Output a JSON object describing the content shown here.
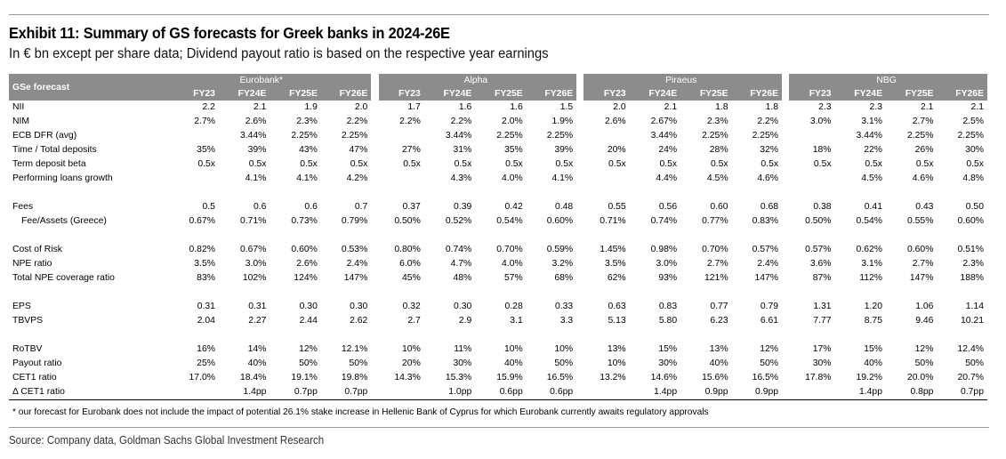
{
  "title": "Exhibit 11: Summary of GS forecasts for Greek banks in 2024-26E",
  "subtitle": "In € bn except per share data; Dividend payout ratio is based on the respective year earnings",
  "table": {
    "row_header": "GSe forecast",
    "banks": [
      "Eurobank*",
      "Alpha",
      "Piraeus",
      "NBG"
    ],
    "years": [
      "FY23",
      "FY24E",
      "FY25E",
      "FY26E"
    ],
    "rows": [
      {
        "label": "NII",
        "values": [
          "2.2",
          "2.1",
          "1.9",
          "2.0",
          "1.7",
          "1.6",
          "1.6",
          "1.5",
          "2.0",
          "2.1",
          "1.8",
          "1.8",
          "2.3",
          "2.3",
          "2.1",
          "2.1"
        ]
      },
      {
        "label": "NIM",
        "values": [
          "2.7%",
          "2.6%",
          "2.3%",
          "2.2%",
          "2.2%",
          "2.2%",
          "2.0%",
          "1.9%",
          "2.6%",
          "2.67%",
          "2.3%",
          "2.2%",
          "3.0%",
          "3.1%",
          "2.7%",
          "2.5%"
        ]
      },
      {
        "label": "ECB DFR (avg)",
        "values": [
          "",
          "3.44%",
          "2.25%",
          "2.25%",
          "",
          "3.44%",
          "2.25%",
          "2.25%",
          "",
          "3.44%",
          "2.25%",
          "2.25%",
          "",
          "3.44%",
          "2.25%",
          "2.25%"
        ]
      },
      {
        "label": "Time / Total deposits",
        "values": [
          "35%",
          "39%",
          "43%",
          "47%",
          "27%",
          "31%",
          "35%",
          "39%",
          "20%",
          "24%",
          "28%",
          "32%",
          "18%",
          "22%",
          "26%",
          "30%"
        ]
      },
      {
        "label": "Term deposit beta",
        "values": [
          "0.5x",
          "0.5x",
          "0.5x",
          "0.5x",
          "0.5x",
          "0.5x",
          "0.5x",
          "0.5x",
          "0.5x",
          "0.5x",
          "0.5x",
          "0.5x",
          "0.5x",
          "0.5x",
          "0.5x",
          "0.5x"
        ]
      },
      {
        "label": "Performing loans growth",
        "values": [
          "",
          "4.1%",
          "4.1%",
          "4.2%",
          "",
          "4.3%",
          "4.0%",
          "4.1%",
          "",
          "4.4%",
          "4.5%",
          "4.6%",
          "",
          "4.5%",
          "4.6%",
          "4.8%"
        ]
      },
      {
        "spacer": true
      },
      {
        "label": "Fees",
        "values": [
          "0.5",
          "0.6",
          "0.6",
          "0.7",
          "0.37",
          "0.39",
          "0.42",
          "0.48",
          "0.55",
          "0.56",
          "0.60",
          "0.68",
          "0.38",
          "0.41",
          "0.43",
          "0.50"
        ]
      },
      {
        "label": "Fee/Assets (Greece)",
        "indent": true,
        "values": [
          "0.67%",
          "0.71%",
          "0.73%",
          "0.79%",
          "0.50%",
          "0.52%",
          "0.54%",
          "0.60%",
          "0.71%",
          "0.74%",
          "0.77%",
          "0.83%",
          "0.50%",
          "0.54%",
          "0.55%",
          "0.60%"
        ]
      },
      {
        "spacer": true
      },
      {
        "label": "Cost of Risk",
        "values": [
          "0.82%",
          "0.67%",
          "0.60%",
          "0.53%",
          "0.80%",
          "0.74%",
          "0.70%",
          "0.59%",
          "1.45%",
          "0.98%",
          "0.70%",
          "0.57%",
          "0.57%",
          "0.62%",
          "0.60%",
          "0.51%"
        ]
      },
      {
        "label": "NPE ratio",
        "values": [
          "3.5%",
          "3.0%",
          "2.6%",
          "2.4%",
          "6.0%",
          "4.7%",
          "4.0%",
          "3.2%",
          "3.5%",
          "3.0%",
          "2.7%",
          "2.4%",
          "3.6%",
          "3.1%",
          "2.7%",
          "2.3%"
        ]
      },
      {
        "label": "Total NPE coverage ratio",
        "values": [
          "83%",
          "102%",
          "124%",
          "147%",
          "45%",
          "48%",
          "57%",
          "68%",
          "62%",
          "93%",
          "121%",
          "147%",
          "87%",
          "112%",
          "147%",
          "188%"
        ]
      },
      {
        "spacer": true
      },
      {
        "label": "EPS",
        "values": [
          "0.31",
          "0.31",
          "0.30",
          "0.30",
          "0.32",
          "0.30",
          "0.28",
          "0.33",
          "0.63",
          "0.83",
          "0.77",
          "0.79",
          "1.31",
          "1.20",
          "1.06",
          "1.14"
        ]
      },
      {
        "label": "TBVPS",
        "values": [
          "2.04",
          "2.27",
          "2.44",
          "2.62",
          "2.7",
          "2.9",
          "3.1",
          "3.3",
          "5.13",
          "5.80",
          "6.23",
          "6.61",
          "7.77",
          "8.75",
          "9.46",
          "10.21"
        ]
      },
      {
        "spacer": true
      },
      {
        "label": "RoTBV",
        "values": [
          "16%",
          "14%",
          "12%",
          "12.1%",
          "10%",
          "11%",
          "10%",
          "10%",
          "13%",
          "15%",
          "13%",
          "12%",
          "17%",
          "15%",
          "12%",
          "12.4%"
        ]
      },
      {
        "label": "Payout ratio",
        "values": [
          "25%",
          "40%",
          "50%",
          "50%",
          "20%",
          "30%",
          "40%",
          "50%",
          "10%",
          "30%",
          "40%",
          "50%",
          "30%",
          "40%",
          "50%",
          "50%"
        ]
      },
      {
        "label": "CET1 ratio",
        "values": [
          "17.0%",
          "18.4%",
          "19.1%",
          "19.8%",
          "14.3%",
          "15.3%",
          "15.9%",
          "16.5%",
          "13.2%",
          "14.6%",
          "15.6%",
          "16.5%",
          "17.8%",
          "19.2%",
          "20.0%",
          "20.7%"
        ]
      },
      {
        "label": "Δ CET1 ratio",
        "values": [
          "",
          "1.4pp",
          "0.7pp",
          "0.7pp",
          "",
          "1.0pp",
          "0.6pp",
          "0.6pp",
          "",
          "1.4pp",
          "0.9pp",
          "0.9pp",
          "",
          "1.4pp",
          "0.8pp",
          "0.7pp"
        ]
      }
    ]
  },
  "footnote": "* our forecast for Eurobank does not include the impact of potential 26.1% stake increase in Hellenic Bank of Cyprus for which Eurobank currently awaits regulatory approvals",
  "source": "Source: Company data, Goldman Sachs Global Investment Research",
  "colors": {
    "header_bg": "#8c8c8c",
    "header_text": "#ffffff",
    "rule": "#9a9a9a"
  }
}
